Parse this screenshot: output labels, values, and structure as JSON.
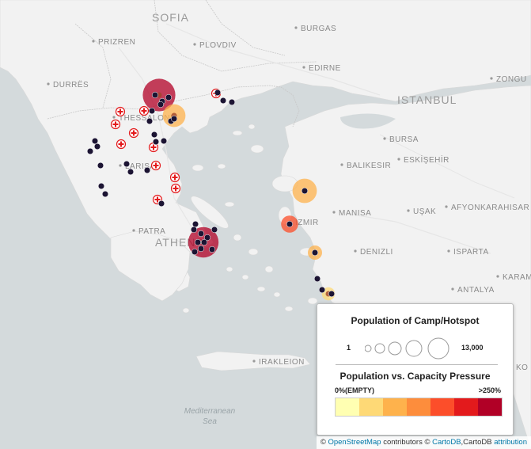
{
  "map": {
    "cities": [
      {
        "name": "SOFIA",
        "size": "big"
      },
      {
        "name": "PRIZREN"
      },
      {
        "name": "PLOVDIV"
      },
      {
        "name": "BURGAS"
      },
      {
        "name": "DURRËS"
      },
      {
        "name": "EDIRNE"
      },
      {
        "name": "ZONGU"
      },
      {
        "name": "ISTANBUL",
        "size": "big"
      },
      {
        "name": "THESSALONI"
      },
      {
        "name": "BURSA"
      },
      {
        "name": "BALIKESIR"
      },
      {
        "name": "ESKİŞEHİR"
      },
      {
        "name": "LARISA"
      },
      {
        "name": "MANISA"
      },
      {
        "name": "UŞAK"
      },
      {
        "name": "AFYONKARAHISAR"
      },
      {
        "name": "PATRA"
      },
      {
        "name": "ATHENS",
        "size": "big"
      },
      {
        "name": "IZMIR"
      },
      {
        "name": "DENIZLI"
      },
      {
        "name": "ISPARTA"
      },
      {
        "name": "ANTALYA"
      },
      {
        "name": "KARAMA"
      },
      {
        "name": "IRAKLEION"
      },
      {
        "name": "KO"
      }
    ],
    "sea_label_line1": "Mediterranean",
    "sea_label_line2": "Sea",
    "hotspots": [
      {
        "pop": 9000,
        "pressure": 7
      },
      {
        "pop": 3500,
        "pressure": 3
      },
      {
        "pop": 7500,
        "pressure": 7
      },
      {
        "pop": 4200,
        "pressure": 3
      },
      {
        "pop": 1500,
        "pressure": 5
      },
      {
        "pop": 800,
        "pressure": 3
      },
      {
        "pop": 600,
        "pressure": 2
      }
    ],
    "small_camp_count": 40,
    "medical_marker_count": 11
  },
  "legend": {
    "size_title": "Population of Camp/Hotspot",
    "size_min": "1",
    "size_max": "13,000",
    "color_title": "Population vs. Capacity Pressure",
    "color_min": "0%(EMPTY)",
    "color_max": ">250%",
    "ramp_colors": [
      "#ffffb2",
      "#fed976",
      "#feb24c",
      "#fd8d3c",
      "#fc4e2a",
      "#e31a1c",
      "#b10026"
    ]
  },
  "attribution": {
    "copy1": "©",
    "osm_link": "OpenStreetMap",
    "contributors": "contributors",
    "copy2": "©",
    "carto_link": "CartoDB",
    "carto_text": ",CartoDB",
    "attribution_link": "attribution"
  }
}
